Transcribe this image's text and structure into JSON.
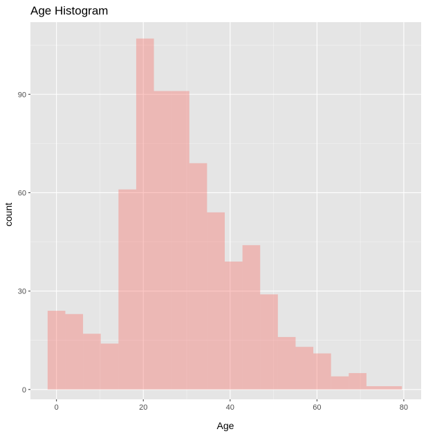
{
  "chart_data": {
    "type": "bar",
    "title": "Age Histogram",
    "xlabel": "Age",
    "ylabel": "count",
    "bin_width": 4.08,
    "bins": [
      {
        "start": -2.04,
        "end": 2.04,
        "count": 24
      },
      {
        "start": 2.04,
        "end": 6.12,
        "count": 23
      },
      {
        "start": 6.12,
        "end": 10.2,
        "count": 17
      },
      {
        "start": 10.2,
        "end": 14.28,
        "count": 14
      },
      {
        "start": 14.28,
        "end": 18.36,
        "count": 61
      },
      {
        "start": 18.36,
        "end": 22.44,
        "count": 107
      },
      {
        "start": 22.44,
        "end": 26.52,
        "count": 91
      },
      {
        "start": 26.52,
        "end": 30.6,
        "count": 91
      },
      {
        "start": 30.6,
        "end": 34.68,
        "count": 69
      },
      {
        "start": 34.68,
        "end": 38.76,
        "count": 54
      },
      {
        "start": 38.76,
        "end": 42.84,
        "count": 39
      },
      {
        "start": 42.84,
        "end": 46.92,
        "count": 44
      },
      {
        "start": 46.92,
        "end": 51.0,
        "count": 29
      },
      {
        "start": 51.0,
        "end": 55.08,
        "count": 16
      },
      {
        "start": 55.08,
        "end": 59.16,
        "count": 13
      },
      {
        "start": 59.16,
        "end": 63.24,
        "count": 11
      },
      {
        "start": 63.24,
        "end": 67.32,
        "count": 4
      },
      {
        "start": 67.32,
        "end": 71.4,
        "count": 5
      },
      {
        "start": 71.4,
        "end": 75.48,
        "count": 1
      },
      {
        "start": 75.48,
        "end": 79.56,
        "count": 1
      }
    ],
    "xlim": [
      -6,
      84
    ],
    "ylim": [
      -3,
      112
    ],
    "x_ticks": [
      0,
      20,
      40,
      60,
      80
    ],
    "x_minor_ticks": [
      10,
      30,
      50,
      70
    ],
    "y_ticks": [
      0,
      30,
      60,
      90
    ],
    "y_minor_ticks": [
      15,
      45,
      75,
      105
    ],
    "grid": true,
    "colors": {
      "panel_background": "#e5e5e5",
      "grid_major": "#ffffff",
      "bar_fill": "#f8766d",
      "bar_opacity": 0.4
    }
  }
}
